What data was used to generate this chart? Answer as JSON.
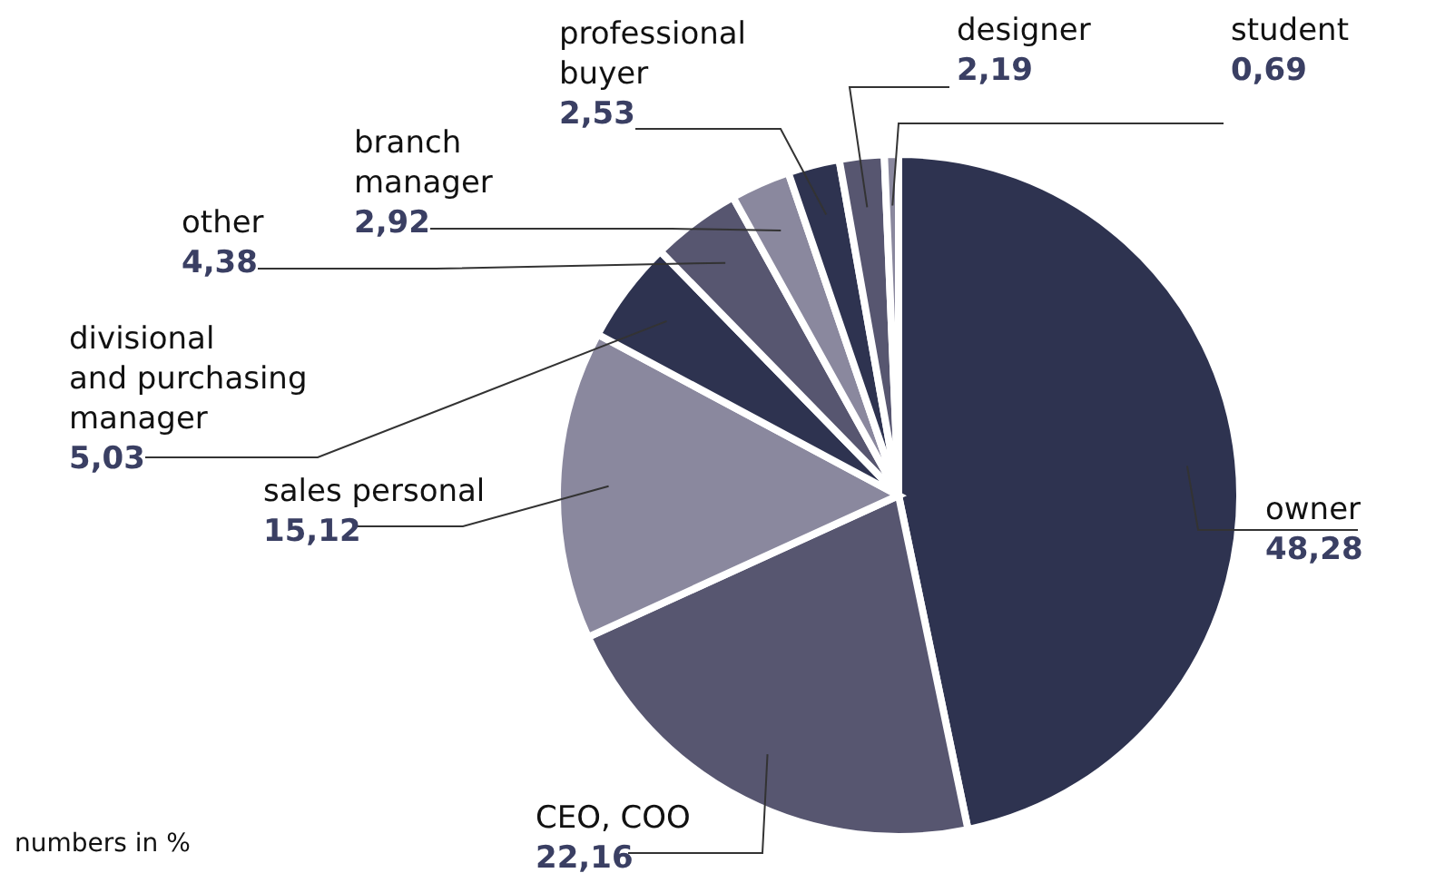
{
  "chart_data": {
    "type": "pie",
    "categories": [
      "owner",
      "CEO, COO",
      "sales personal",
      "divisional and purchasing manager",
      "other",
      "branch manager",
      "professional buyer",
      "designer",
      "student"
    ],
    "values": [
      48.28,
      22.16,
      15.12,
      5.03,
      4.38,
      2.92,
      2.53,
      2.19,
      0.69
    ],
    "value_labels": [
      "48,28",
      "22,16",
      "15,12",
      "5,03",
      "4,38",
      "2,92",
      "2,53",
      "2,19",
      "0,69"
    ],
    "colors": [
      "#2e3350",
      "#575670",
      "#8a889e",
      "#2e3350",
      "#575670",
      "#8a889e",
      "#2e3350",
      "#575670",
      "#8a889e"
    ],
    "annotations": [
      "numbers in %"
    ]
  }
}
